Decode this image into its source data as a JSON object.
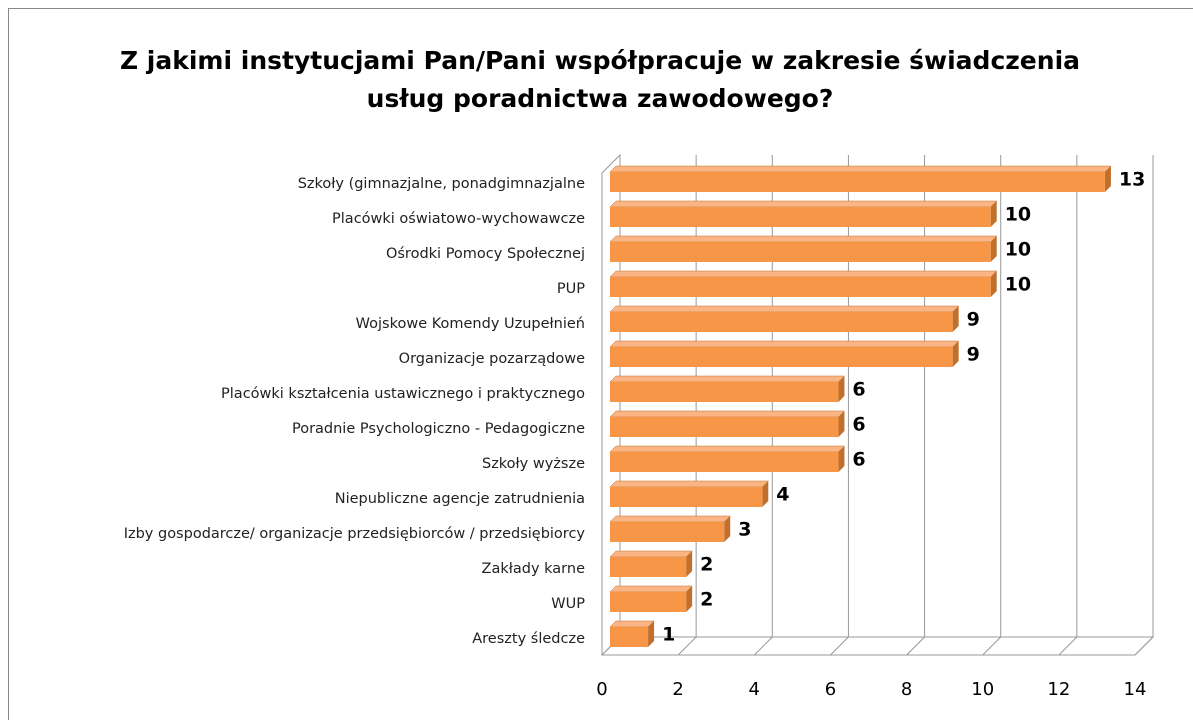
{
  "chart_data": {
    "type": "bar3d_horizontal",
    "title": [
      "Z jakimi instytucjami Pan/Pani współpracuje w zakresie świadczenia",
      "usług poradnictwa zawodowego?"
    ],
    "categories": [
      "Szkoły (gimnazjalne, ponadgimnazjalne",
      "Placówki oświatowo-wychowawcze",
      "Ośrodki Pomocy Społecznej",
      "PUP",
      "Wojskowe Komendy Uzupełnień",
      "Organizacje pozarządowe",
      "Placówki kształcenia ustawicznego i praktycznego",
      "Poradnie Psychologiczno - Pedagogiczne",
      "Szkoły wyższe",
      "Niepubliczne agencje zatrudnienia",
      "Izby gospodarcze/ organizacje przedsiębiorców / przedsiębiorcy",
      "Zakłady karne",
      "WUP",
      "Areszty śledcze"
    ],
    "values": [
      13,
      10,
      10,
      10,
      9,
      9,
      6,
      6,
      6,
      4,
      3,
      2,
      2,
      1
    ],
    "color": "#f79646",
    "side_color": "#c0702c",
    "xlim": [
      0,
      14
    ],
    "xticks": [
      0,
      2,
      4,
      6,
      8,
      10,
      12,
      14
    ],
    "grid": true
  }
}
